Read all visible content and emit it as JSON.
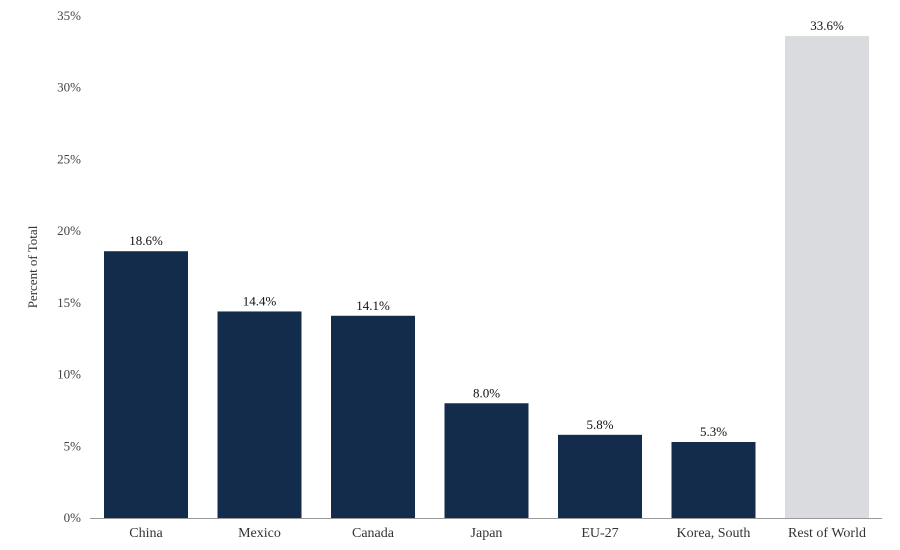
{
  "chart_data": {
    "type": "bar",
    "title": "",
    "xlabel": "",
    "ylabel": "Percent of Total",
    "categories": [
      "China",
      "Mexico",
      "Canada",
      "Japan",
      "EU-27",
      "Korea, South",
      "Rest of World"
    ],
    "values": [
      18.6,
      14.4,
      14.1,
      8.0,
      5.8,
      5.3,
      33.6
    ],
    "value_labels": [
      "18.6%",
      "14.4%",
      "14.1%",
      "8.0%",
      "5.8%",
      "5.3%",
      "33.6%"
    ],
    "ylim": [
      0,
      35
    ],
    "yticks": [
      0,
      5,
      10,
      15,
      20,
      25,
      30,
      35
    ],
    "ytick_labels": [
      "0%",
      "5%",
      "10%",
      "15%",
      "20%",
      "25%",
      "30%",
      "35%"
    ],
    "grid": false,
    "legend": "none",
    "colors": {
      "default_bar": "#142c4c",
      "highlight_bar": "#d9dbde",
      "highlight_index": 6,
      "axis": "#999999"
    }
  }
}
